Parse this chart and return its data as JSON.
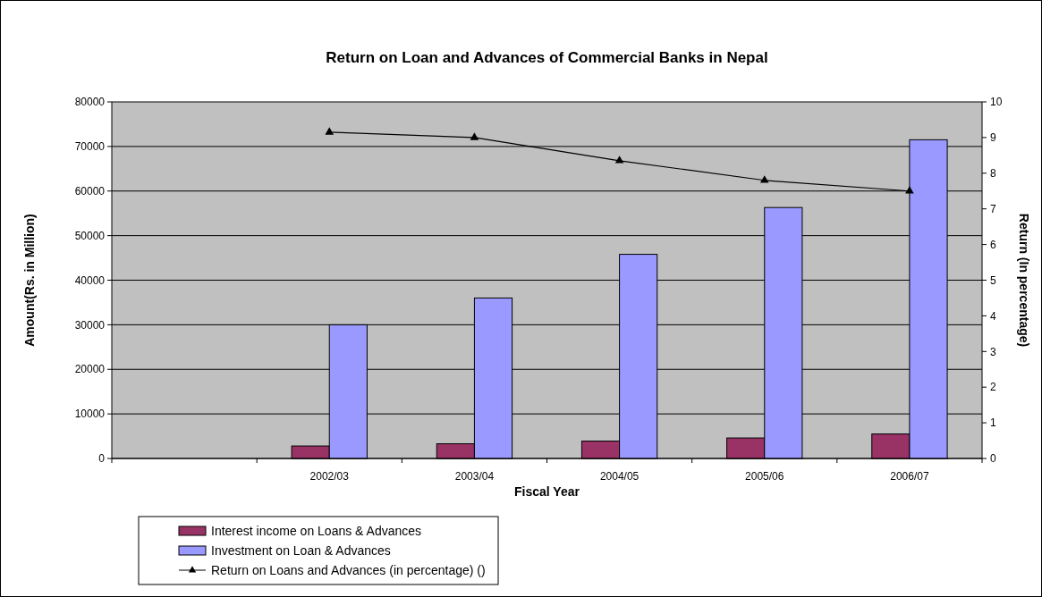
{
  "chart_data": {
    "type": "bar",
    "title": "Return on Loan and Advances of Commercial Banks in Nepal",
    "xlabel": "Fiscal Year",
    "ylabel": "Amount(Rs. in Million)",
    "y2label": "Return (In percentage)",
    "categories": [
      null,
      "2002/03",
      "2003/04",
      "2004/05",
      "2005/06",
      "2006/07"
    ],
    "series": [
      {
        "name": "Interest income on Loans & Advances",
        "color": "#993366",
        "values": [
          null,
          2800,
          3300,
          3900,
          4600,
          5500
        ]
      },
      {
        "name": "Investment on Loan & Advances",
        "color": "#9999ff",
        "values": [
          null,
          30000,
          36000,
          45800,
          56300,
          71500
        ]
      },
      {
        "name": "Return on Loans and Advances (in percentage) ()",
        "type": "line",
        "axis": "y2",
        "color": "#000000",
        "marker": "triangle",
        "values": [
          null,
          9.15,
          9.0,
          8.35,
          7.8,
          7.5
        ]
      }
    ],
    "ylim": [
      0,
      80000
    ],
    "yticks": [
      0,
      10000,
      20000,
      30000,
      40000,
      50000,
      60000,
      70000,
      80000
    ],
    "y2lim": [
      0,
      10
    ],
    "y2ticks": [
      0,
      1,
      2,
      3,
      4,
      5,
      6,
      7,
      8,
      9,
      10
    ],
    "grid": "y",
    "legend": "bottom left"
  }
}
